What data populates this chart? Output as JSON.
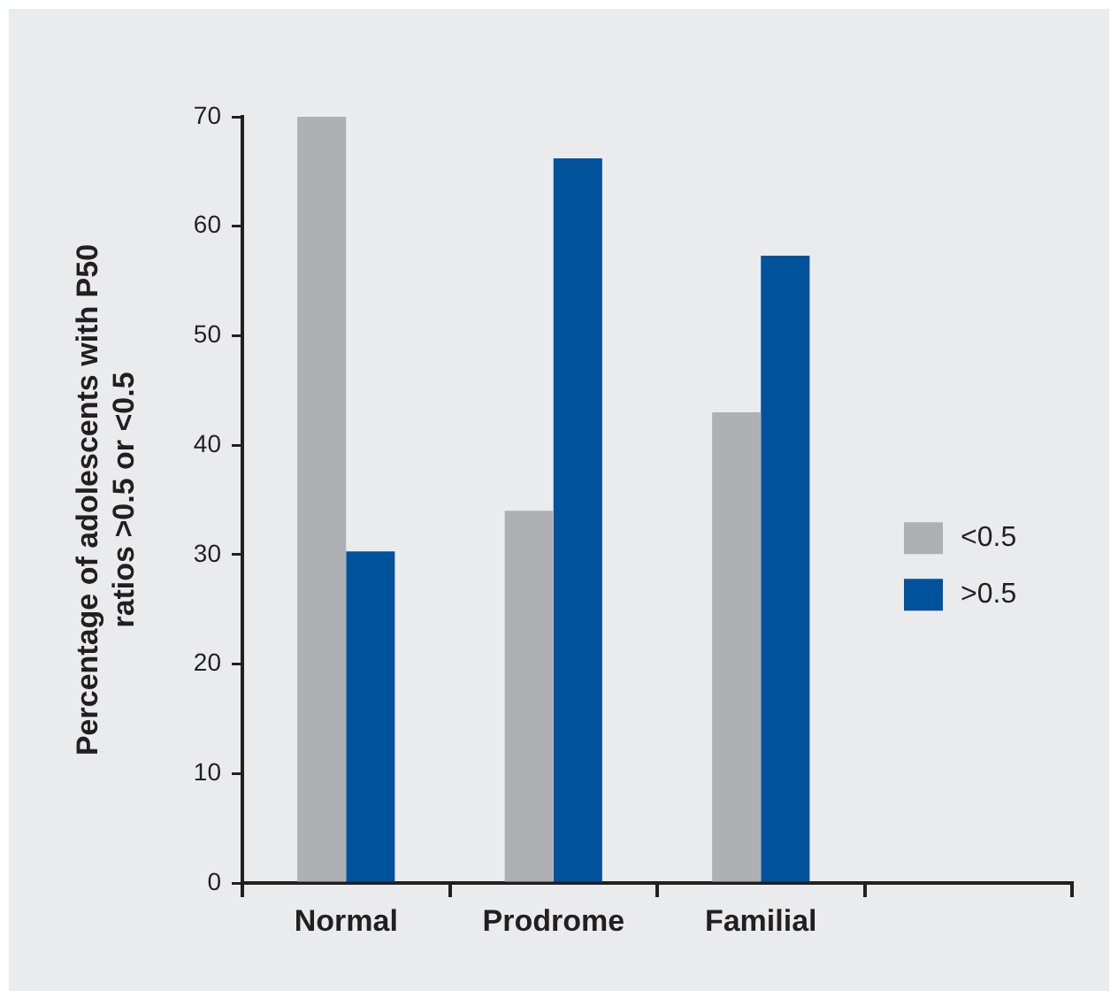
{
  "chart_data": {
    "type": "bar",
    "ylabel": "Percentage of adolescents with P50 ratios >0.5 or <0.5",
    "categories": [
      "Normal",
      "Prodrome",
      "Familial",
      null
    ],
    "series": [
      {
        "name": "<0.5",
        "color": "#afb0b4",
        "values": [
          70,
          34,
          43,
          null
        ]
      },
      {
        "name": ">0.5",
        "color": "#00529b",
        "values": [
          30.3,
          66.2,
          57.3,
          null
        ]
      }
    ],
    "ylim": [
      0,
      70
    ],
    "yticks": [
      0,
      10,
      20,
      30,
      40,
      50,
      60,
      70
    ],
    "grid": false,
    "legend": "right"
  }
}
